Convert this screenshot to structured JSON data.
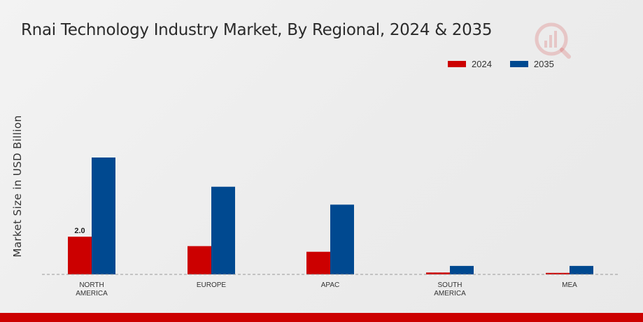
{
  "chart_data": {
    "type": "bar",
    "title": "Rnai Technology Industry Market, By Regional, 2024 & 2035",
    "xlabel": "",
    "ylabel": "Market Size in USD Billion",
    "categories": [
      "NORTH\nAMERICA",
      "EUROPE",
      "APAC",
      "SOUTH\nAMERICA",
      "MEA"
    ],
    "series": [
      {
        "name": "2024",
        "color": "#cc0000",
        "values": [
          2.0,
          1.5,
          1.2,
          0.1,
          0.08
        ]
      },
      {
        "name": "2035",
        "color": "#004990",
        "values": [
          6.2,
          4.65,
          3.7,
          0.45,
          0.45
        ]
      }
    ],
    "data_labels": [
      {
        "series": 0,
        "index": 0,
        "text": "2.0"
      }
    ],
    "ylim": [
      0,
      7.5
    ],
    "grid": false,
    "legend_position": "top-right"
  },
  "logo": {
    "icon": "market-research-logo-icon",
    "color": "#cc0000"
  }
}
